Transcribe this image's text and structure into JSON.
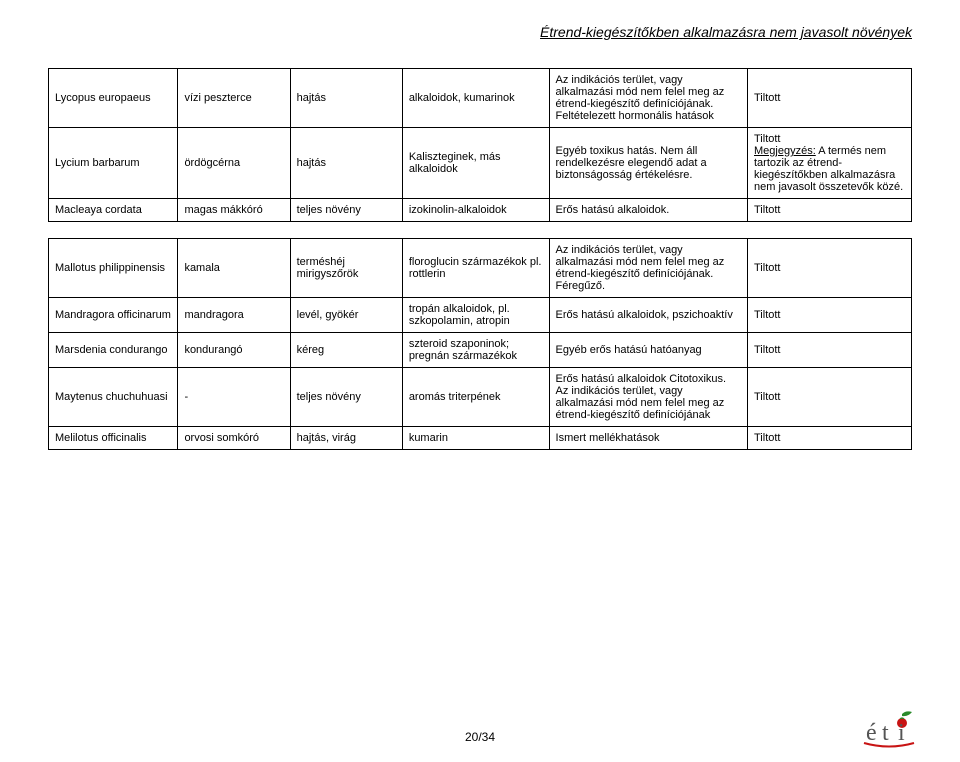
{
  "header": {
    "title": "Étrend-kiegészítőkben alkalmazásra nem javasolt növények"
  },
  "table1": {
    "rows": [
      {
        "c1": "Lycopus europaeus",
        "c2": "vízi peszterce",
        "c3": "hajtás",
        "c4": "alkaloidok, kumarinok",
        "c5": "Az indikációs terület, vagy alkalmazási mód nem felel meg az étrend-kiegészítő definíciójának. Feltételezett hormonális hatások",
        "c6": "Tiltott"
      },
      {
        "c1": "Lycium barbarum",
        "c2": "ördögcérna",
        "c3": "hajtás",
        "c4": "Kaliszteginek, más alkaloidok",
        "c5": "Egyéb toxikus hatás. Nem áll rendelkezésre elegendő adat a biztonságosság értékelésre.",
        "c6": "Tiltott\nMegjegyzés: A termés nem tartozik az étrend-kiegészítőkben alkalmazásra nem javasolt összetevők közé."
      },
      {
        "c1": "Macleaya cordata",
        "c2": "magas mákkóró",
        "c3": "teljes növény",
        "c4": "izokinolin-alkaloidok",
        "c5": "Erős hatású alkaloidok.",
        "c6": "Tiltott"
      }
    ]
  },
  "table2": {
    "rows": [
      {
        "c1": "Mallotus philippinensis",
        "c2": "kamala",
        "c3": "terméshéj mirigyszőrök",
        "c4": "floroglucin származékok pl. rottlerin",
        "c5": "Az indikációs terület, vagy alkalmazási mód nem felel meg az étrend-kiegészítő definíciójának. Féregűző.",
        "c6": "Tiltott"
      },
      {
        "c1": "Mandragora officinarum",
        "c2": "mandragora",
        "c3": "levél, gyökér",
        "c4": "tropán alkaloidok, pl. szkopolamin, atropin",
        "c5": "Erős hatású alkaloidok, pszichoaktív",
        "c6": "Tiltott"
      },
      {
        "c1": "Marsdenia condurango",
        "c2": "kondurangó",
        "c3": "kéreg",
        "c4": "szteroid szaponinok; pregnán származékok",
        "c5": "Egyéb erős hatású hatóanyag",
        "c6": "Tiltott"
      },
      {
        "c1": "Maytenus chuchuhuasi",
        "c2": "-",
        "c3": "teljes növény",
        "c4": "aromás triterpének",
        "c5": "Erős hatású alkaloidok Citotoxikus. Az indikációs terület, vagy alkalmazási mód nem felel meg az étrend-kiegészítő definíciójának",
        "c6": "Tiltott"
      },
      {
        "c1": "Melilotus officinalis",
        "c2": "orvosi somkóró",
        "c3": "hajtás, virág",
        "c4": "kumarin",
        "c5": "Ismert mellékhatások",
        "c6": "Tiltott"
      }
    ]
  },
  "footer": {
    "page": "20/34"
  },
  "logo": {
    "text": "éti",
    "leaf_color": "#2a8a2a",
    "apple_red": "#c81414",
    "text_color": "#555555"
  }
}
